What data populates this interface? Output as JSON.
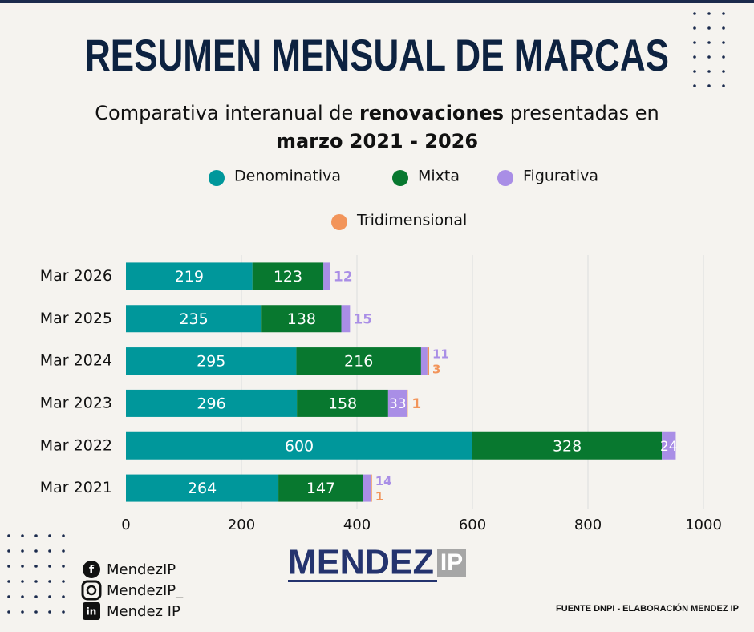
{
  "chart_data": {
    "type": "stacked-barh",
    "title": "RESUMEN MENSUAL DE MARCAS",
    "subtitle_parts": [
      "Comparativa interanual de ",
      "renovaciones",
      " presentadas en",
      "marzo 2021 - 2026"
    ],
    "categories": [
      "Mar 2026",
      "Mar 2025",
      "Mar 2024",
      "Mar 2023",
      "Mar 2022",
      "Mar 2021"
    ],
    "series": [
      {
        "name": "Denominativa",
        "color": "#00979b",
        "values": [
          219,
          235,
          295,
          296,
          600,
          264
        ]
      },
      {
        "name": "Mixta",
        "color": "#08782f",
        "values": [
          123,
          138,
          216,
          158,
          328,
          147
        ]
      },
      {
        "name": "Figurativa",
        "color": "#a98ee6",
        "values": [
          12,
          15,
          11,
          33,
          24,
          14
        ]
      },
      {
        "name": "Tridimensional",
        "color": "#f2945a",
        "values": [
          null,
          null,
          3,
          1,
          null,
          1
        ]
      }
    ],
    "xlim": [
      0,
      1000
    ],
    "xticks": [
      0,
      200,
      400,
      600,
      800,
      1000
    ],
    "grid": true
  },
  "social": [
    "MendezIP",
    "MendezIP_",
    "Mendez IP"
  ],
  "logo": [
    "MENDEZ",
    "IP"
  ],
  "source": "FUENTE DNPI - ELABORACIÓN MENDEZ IP"
}
